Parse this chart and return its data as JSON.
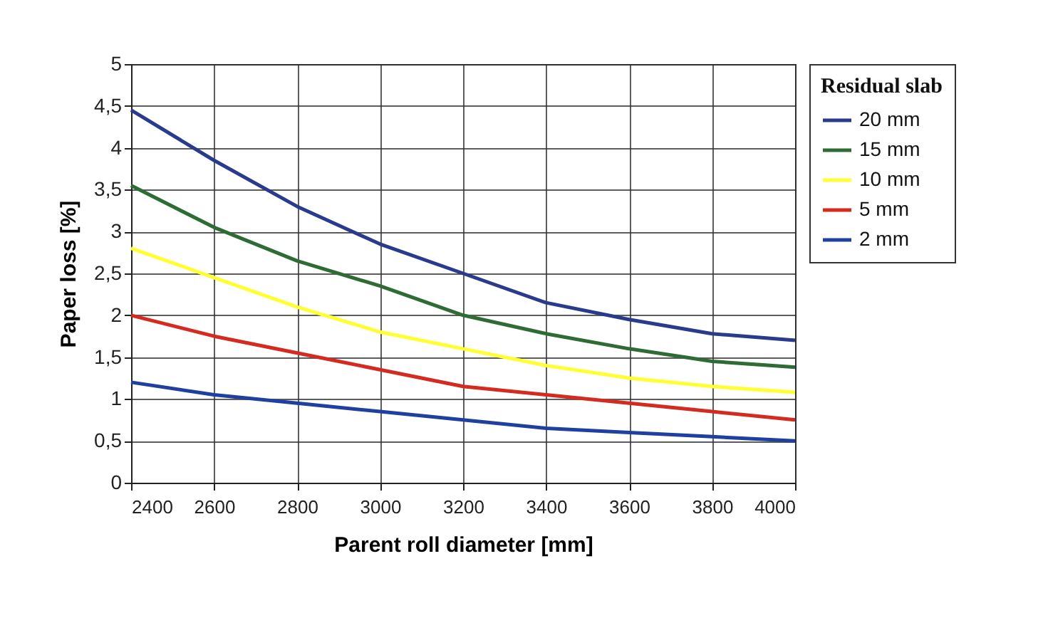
{
  "chart_data": {
    "type": "line",
    "xlabel": "Parent roll diameter [mm]",
    "ylabel": "Paper loss [%]",
    "legend_title": "Residual slab",
    "legend": "right",
    "grid": true,
    "marker": "none",
    "line_style": "solid",
    "x": [
      2400,
      2600,
      2800,
      3000,
      3200,
      3400,
      3600,
      3800,
      4000
    ],
    "xlim": [
      2400,
      4000
    ],
    "xticks": [
      2400,
      2600,
      2800,
      3000,
      3200,
      3400,
      3600,
      3800,
      4000
    ],
    "ylim": [
      0,
      5
    ],
    "yticks": [
      0,
      {
        "value": 0.5,
        "label": "0,5"
      },
      1,
      {
        "value": 1.5,
        "label": "1,5"
      },
      2,
      {
        "value": 2.5,
        "label": "2,5"
      },
      3,
      {
        "value": 3.5,
        "label": "3,5"
      },
      4,
      {
        "value": 4.5,
        "label": "4,5"
      },
      5
    ],
    "series": [
      {
        "name": "20 mm",
        "color": "#2a3a8c",
        "values": [
          4.45,
          3.85,
          3.3,
          2.85,
          2.5,
          2.15,
          1.95,
          1.78,
          1.7
        ]
      },
      {
        "name": "15 mm",
        "color": "#2e6b35",
        "values": [
          3.55,
          3.05,
          2.65,
          2.35,
          2.0,
          1.78,
          1.6,
          1.45,
          1.38
        ]
      },
      {
        "name": "10 mm",
        "color": "#ffff33",
        "values": [
          2.8,
          2.45,
          2.1,
          1.8,
          1.6,
          1.4,
          1.25,
          1.15,
          1.08
        ]
      },
      {
        "name": "5 mm",
        "color": "#d42a20",
        "values": [
          2.0,
          1.75,
          1.55,
          1.35,
          1.15,
          1.05,
          0.95,
          0.85,
          0.75
        ]
      },
      {
        "name": "2 mm",
        "color": "#2040a0",
        "values": [
          1.2,
          1.05,
          0.95,
          0.85,
          0.75,
          0.65,
          0.6,
          0.55,
          0.5
        ]
      }
    ]
  }
}
